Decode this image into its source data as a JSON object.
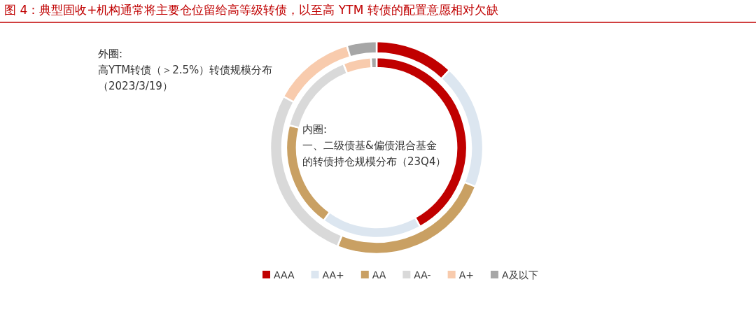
{
  "chart_data": {
    "type": "donut",
    "title": "图 4：典型固收+机构通常将主要仓位留给高等级转债，以至高 YTM 转债的配置意愿相对欠缺",
    "categories": [
      "AAA",
      "AA+",
      "AA",
      "AA-",
      "A+",
      "A及以下"
    ],
    "colors": [
      "#c00000",
      "#dce6f0",
      "#c9a063",
      "#d9d9d9",
      "#f8cbad",
      "#a6a6a6"
    ],
    "series": [
      {
        "values": [
          12,
          19,
          25,
          27,
          12.5,
          4.5
        ]
      },
      {
        "values": [
          42,
          18,
          19,
          15,
          5,
          1
        ]
      }
    ],
    "annotations": [
      "外圈:",
      "高YTM转债（＞2.5%）转债规模分布",
      "（2023/3/19）",
      "内圈:",
      "一、二级债基&偏债混合基金",
      "的转债持仓规模分布（23Q4）"
    ],
    "legend": "bottom"
  }
}
